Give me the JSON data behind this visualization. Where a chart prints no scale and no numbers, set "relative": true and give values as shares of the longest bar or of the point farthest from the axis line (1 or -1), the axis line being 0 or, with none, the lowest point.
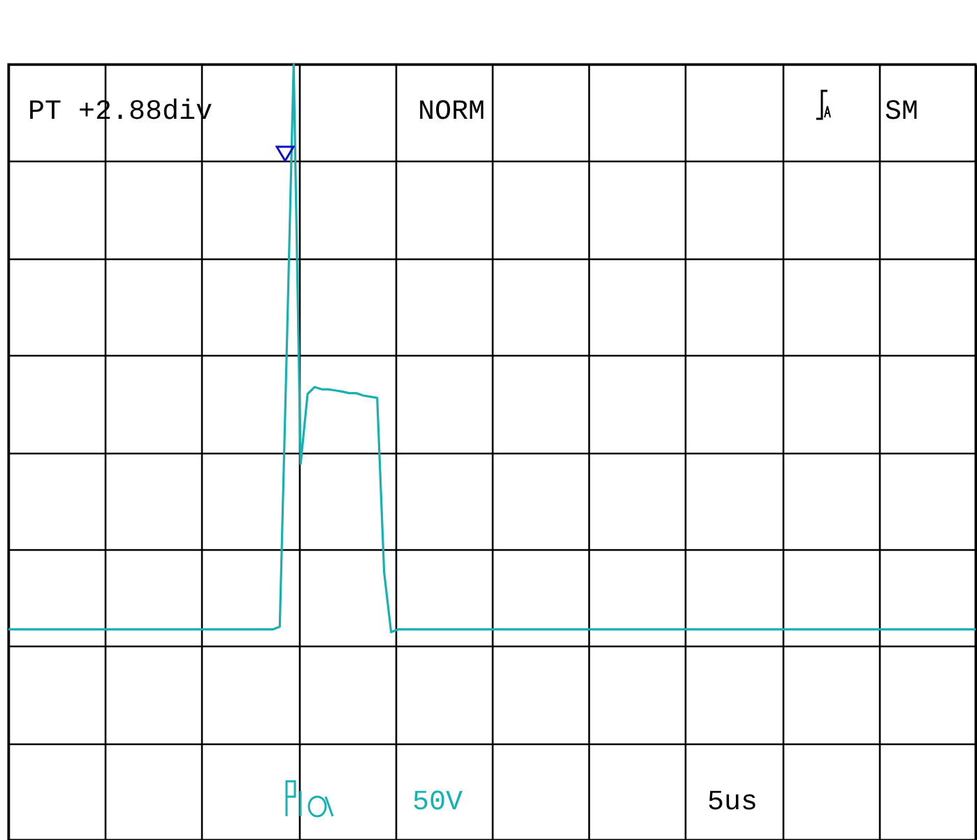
{
  "chart_data": {
    "type": "line",
    "relative": true,
    "grid": true,
    "annotations": [
      "PT  +2.88div",
      "NORM",
      "SM",
      "50V",
      "5us"
    ],
    "categories": [
      null,
      null,
      null,
      null,
      null,
      null,
      null,
      null,
      null,
      null,
      null,
      null,
      null,
      null,
      null,
      null,
      null,
      null,
      null,
      null,
      null,
      null,
      null,
      null,
      null,
      null,
      null,
      null,
      null,
      null,
      null,
      null,
      null,
      null,
      null,
      null,
      null,
      null,
      null,
      null,
      null,
      null,
      null,
      null,
      null,
      null,
      null,
      null,
      null,
      null,
      null,
      null,
      null,
      null,
      null,
      null,
      null,
      null,
      null,
      null,
      null,
      null,
      null,
      null,
      null,
      null,
      null,
      null,
      null,
      null,
      null,
      null,
      null,
      null,
      null,
      null,
      null,
      null,
      null,
      null,
      null,
      null,
      null,
      null,
      null,
      null,
      null,
      null,
      null,
      null,
      null,
      null,
      null,
      null,
      null,
      null,
      null,
      null,
      null,
      null,
      null,
      null,
      null,
      null,
      null,
      null,
      null,
      null,
      null,
      null,
      null,
      null,
      null,
      null,
      null,
      null,
      null,
      null,
      null,
      null,
      null,
      null,
      null,
      null,
      null,
      null,
      null,
      null,
      null,
      null,
      null,
      null,
      null,
      null,
      null,
      null,
      null,
      null,
      null,
      null
    ],
    "series": [
      {
        "color": "#17b1b1",
        "values": [
          -0.457,
          -0.457,
          -0.457,
          -0.457,
          -0.457,
          -0.457,
          -0.457,
          -0.457,
          -0.457,
          -0.457,
          -0.457,
          -0.457,
          -0.457,
          -0.457,
          -0.457,
          -0.457,
          -0.457,
          -0.457,
          -0.457,
          -0.457,
          -0.457,
          -0.457,
          -0.457,
          -0.457,
          -0.457,
          -0.457,
          -0.457,
          -0.457,
          -0.457,
          -0.457,
          -0.457,
          -0.457,
          -0.457,
          -0.457,
          -0.457,
          -0.457,
          -0.457,
          -0.457,
          -0.457,
          -0.45,
          0.26,
          1,
          -0.03,
          0.15,
          0.168,
          0.162,
          0.162,
          0.159,
          0.156,
          0.152,
          0.152,
          0.146,
          0.143,
          0.14,
          -0.31,
          -0.464,
          -0.457,
          -0.457,
          -0.457,
          -0.457,
          -0.457,
          -0.457,
          -0.457,
          -0.457,
          -0.457,
          -0.457,
          -0.457,
          -0.457,
          -0.457,
          -0.457,
          -0.457,
          -0.457,
          -0.457,
          -0.457,
          -0.457,
          -0.457,
          -0.457,
          -0.457,
          -0.457,
          -0.457,
          -0.457,
          -0.457,
          -0.457,
          -0.457,
          -0.457,
          -0.457,
          -0.457,
          -0.457,
          -0.457,
          -0.457,
          -0.457,
          -0.457,
          -0.457,
          -0.457,
          -0.457,
          -0.457,
          -0.457,
          -0.457,
          -0.457,
          -0.457,
          -0.457,
          -0.457,
          -0.457,
          -0.457,
          -0.457,
          -0.457,
          -0.457,
          -0.457,
          -0.457,
          -0.457,
          -0.457,
          -0.457,
          -0.457,
          -0.457,
          -0.457,
          -0.457,
          -0.457,
          -0.457,
          -0.457,
          -0.457,
          -0.457,
          -0.457,
          -0.457,
          -0.457,
          -0.457,
          -0.457,
          -0.457,
          -0.457,
          -0.457,
          -0.457,
          -0.457,
          -0.457,
          -0.457,
          -0.457,
          -0.457,
          -0.457,
          -0.457,
          -0.457,
          -0.457,
          -0.457
        ]
      }
    ]
  }
}
